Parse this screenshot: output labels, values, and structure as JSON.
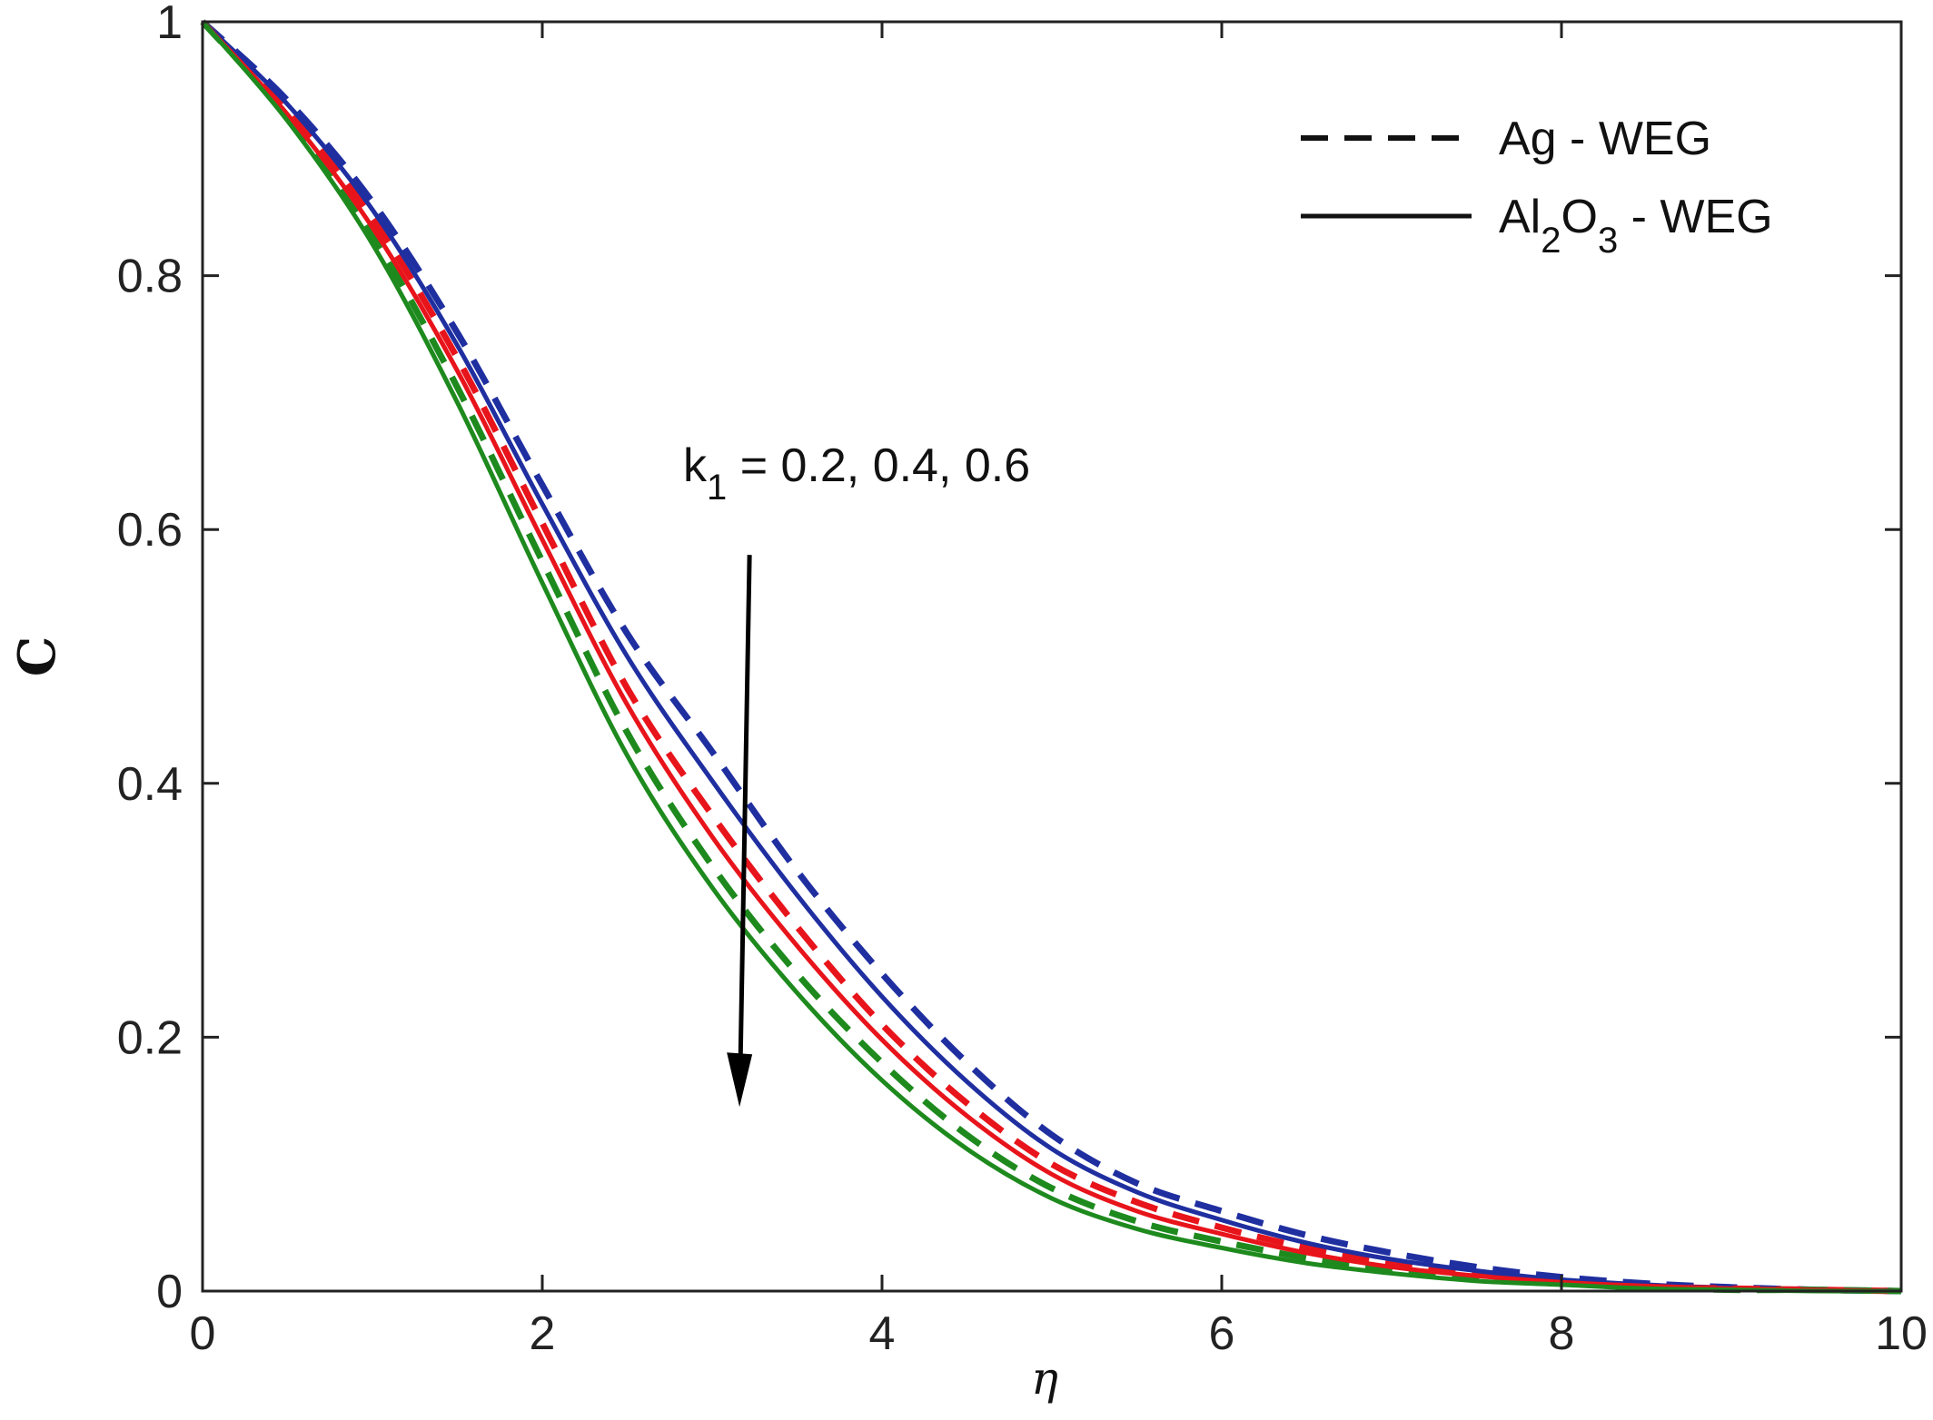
{
  "chart_data": {
    "type": "line",
    "xlabel": "η",
    "ylabel": "C",
    "xlim": [
      0,
      10
    ],
    "ylim": [
      0,
      1
    ],
    "xticks": [
      "0",
      "2",
      "4",
      "6",
      "8",
      "10"
    ],
    "yticks": [
      "0",
      "0.2",
      "0.4",
      "0.6",
      "0.8",
      "1"
    ],
    "grid": false,
    "legend_position": "top-right",
    "legend": [
      {
        "label": "Ag - WEG",
        "style": "dashed"
      },
      {
        "label_main": "Al",
        "sub1": "2",
        "mid": "O",
        "sub2": "3",
        "tail": " - WEG",
        "style": "solid"
      }
    ],
    "annotation": {
      "prefix": "k",
      "subscript": "1",
      "text": " = 0.2, 0.4, 0.6",
      "arrow_from": [
        3.22,
        0.58
      ],
      "arrow_to": [
        3.22,
        0.145
      ]
    },
    "x": [
      0,
      0.5,
      1,
      1.5,
      2,
      2.5,
      3,
      3.5,
      4,
      4.5,
      5,
      5.5,
      6,
      6.5,
      7,
      7.5,
      8,
      8.5,
      9,
      9.5,
      10
    ],
    "series": [
      {
        "k1": "0.2",
        "fluid": "Ag",
        "style": "dashed",
        "color": "#1f2fa0",
        "values": [
          1.0,
          0.938,
          0.858,
          0.755,
          0.635,
          0.518,
          0.425,
          0.331,
          0.25,
          0.18,
          0.123,
          0.085,
          0.063,
          0.044,
          0.03,
          0.019,
          0.011,
          0.006,
          0.003,
          0.001,
          0.0
        ]
      },
      {
        "k1": "0.2",
        "fluid": "Al2O3",
        "style": "solid",
        "color": "#1f2fa0",
        "values": [
          1.0,
          0.935,
          0.852,
          0.745,
          0.62,
          0.5,
          0.402,
          0.312,
          0.232,
          0.165,
          0.112,
          0.078,
          0.056,
          0.038,
          0.025,
          0.016,
          0.009,
          0.005,
          0.002,
          0.001,
          0.0
        ]
      },
      {
        "k1": "0.4",
        "fluid": "Ag",
        "style": "dashed",
        "color": "#e8141b",
        "values": [
          1.0,
          0.93,
          0.845,
          0.735,
          0.605,
          0.475,
          0.375,
          0.287,
          0.21,
          0.148,
          0.1,
          0.07,
          0.05,
          0.034,
          0.022,
          0.014,
          0.008,
          0.004,
          0.002,
          0.001,
          0.0
        ]
      },
      {
        "k1": "0.4",
        "fluid": "Al2O3",
        "style": "solid",
        "color": "#e8141b",
        "values": [
          1.0,
          0.927,
          0.838,
          0.725,
          0.592,
          0.462,
          0.358,
          0.272,
          0.198,
          0.138,
          0.092,
          0.063,
          0.045,
          0.03,
          0.019,
          0.012,
          0.007,
          0.004,
          0.002,
          0.001,
          0.0
        ]
      },
      {
        "k1": "0.6",
        "fluid": "Ag",
        "style": "dashed",
        "color": "#1e8a1e",
        "values": [
          1.0,
          0.925,
          0.832,
          0.712,
          0.575,
          0.44,
          0.335,
          0.25,
          0.18,
          0.123,
          0.081,
          0.055,
          0.039,
          0.026,
          0.016,
          0.01,
          0.006,
          0.003,
          0.001,
          0.001,
          0.0
        ]
      },
      {
        "k1": "0.6",
        "fluid": "Al2O3",
        "style": "solid",
        "color": "#1e8a1e",
        "values": [
          1.0,
          0.922,
          0.825,
          0.7,
          0.558,
          0.422,
          0.318,
          0.235,
          0.166,
          0.112,
          0.073,
          0.049,
          0.034,
          0.022,
          0.014,
          0.008,
          0.005,
          0.002,
          0.001,
          0.0,
          0.0
        ]
      }
    ]
  }
}
